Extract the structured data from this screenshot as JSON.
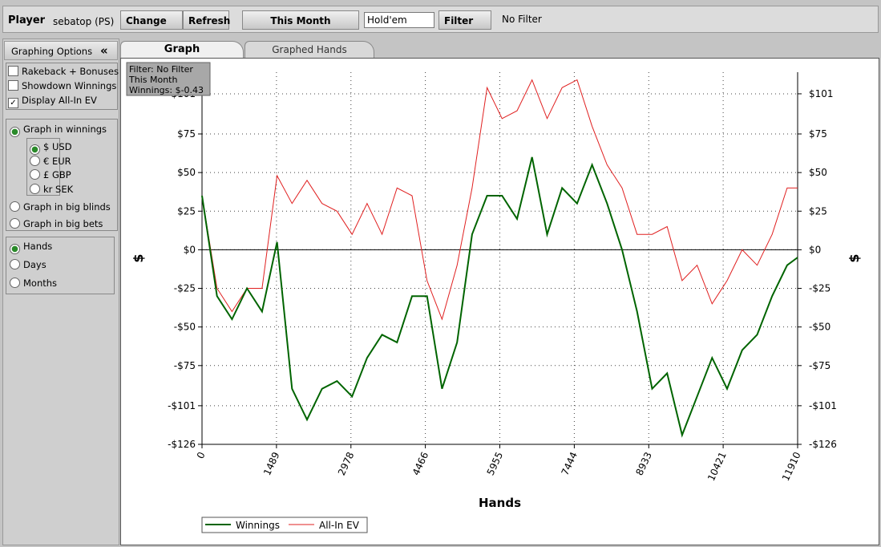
{
  "toolbar": {
    "player_label": "Player",
    "player": "sebatop (PS)",
    "change": "Change",
    "refresh": "Refresh",
    "period": "This Month",
    "game": "Hold'em",
    "filter": "Filter",
    "filter_status": "No Filter"
  },
  "panel": {
    "title": "Graphing Options",
    "collapse": "«",
    "checkboxes": [
      {
        "label": "Rakeback + Bonuses",
        "checked": false
      },
      {
        "label": "Showdown Winnings",
        "checked": false
      },
      {
        "label": "Display All-In EV",
        "checked": true
      }
    ],
    "modes": [
      {
        "label": "Graph in winnings",
        "checked": true
      },
      {
        "label": "Graph in big blinds",
        "checked": false
      },
      {
        "label": "Graph in big bets",
        "checked": false
      }
    ],
    "currencies": [
      {
        "label": "$ USD",
        "checked": true
      },
      {
        "label": "€ EUR",
        "checked": false
      },
      {
        "label": "£ GBP",
        "checked": false
      },
      {
        "label": "kr SEK",
        "checked": false
      }
    ],
    "axis_units": [
      {
        "label": "Hands",
        "checked": true
      },
      {
        "label": "Days",
        "checked": false
      },
      {
        "label": "Months",
        "checked": false
      }
    ]
  },
  "tabs": [
    "Graph",
    "Graphed Hands"
  ],
  "tooltip": [
    "Filter: No Filter",
    "This Month",
    "Winnings: $-0.43"
  ],
  "chart_data": {
    "type": "line",
    "xlabel": "Hands",
    "ylabel": "$",
    "y2label": "$",
    "grid": true,
    "x": [
      0,
      300,
      600,
      900,
      1200,
      1500,
      1800,
      2100,
      2400,
      2700,
      3000,
      3300,
      3600,
      3900,
      4200,
      4500,
      4800,
      5100,
      5400,
      5700,
      6000,
      6300,
      6600,
      6900,
      7200,
      7500,
      7800,
      8100,
      8400,
      8700,
      9000,
      9300,
      9600,
      9900,
      10200,
      10500,
      10800,
      11100,
      11400,
      11700,
      11910
    ],
    "xlim": [
      0,
      11910
    ],
    "xticks": [
      0,
      1489,
      2978,
      4466,
      5955,
      7444,
      8933,
      10421,
      11910
    ],
    "ylim": [
      -126,
      115
    ],
    "yticks": [
      {
        "value": -126,
        "label": "-$126"
      },
      {
        "value": -101,
        "label": "-$101"
      },
      {
        "value": -75,
        "label": "-$75"
      },
      {
        "value": -50,
        "label": "-$50"
      },
      {
        "value": -25,
        "label": "-$25"
      },
      {
        "value": 0,
        "label": "$0"
      },
      {
        "value": 25,
        "label": "$25"
      },
      {
        "value": 50,
        "label": "$50"
      },
      {
        "value": 75,
        "label": "$75"
      },
      {
        "value": 101,
        "label": "$101"
      }
    ],
    "series": [
      {
        "name": "Winnings",
        "color": "#006400",
        "values": [
          35,
          -30,
          -45,
          -25,
          -40,
          5,
          -90,
          -110,
          -90,
          -85,
          -95,
          -70,
          -55,
          -60,
          -30,
          -30,
          -90,
          -60,
          10,
          35,
          35,
          20,
          60,
          10,
          40,
          30,
          55,
          30,
          0,
          -40,
          -90,
          -80,
          -120,
          -95,
          -70,
          -90,
          -65,
          -55,
          -30,
          -10,
          -5
        ]
      },
      {
        "name": "All-In EV",
        "color": "#e02020",
        "values": [
          35,
          -25,
          -40,
          -25,
          -25,
          48,
          30,
          45,
          30,
          25,
          10,
          30,
          10,
          40,
          35,
          -20,
          -45,
          -10,
          40,
          105,
          85,
          90,
          110,
          85,
          105,
          110,
          80,
          55,
          40,
          10,
          10,
          15,
          -20,
          -10,
          -35,
          -20,
          0,
          -10,
          10,
          40,
          40
        ]
      }
    ]
  }
}
